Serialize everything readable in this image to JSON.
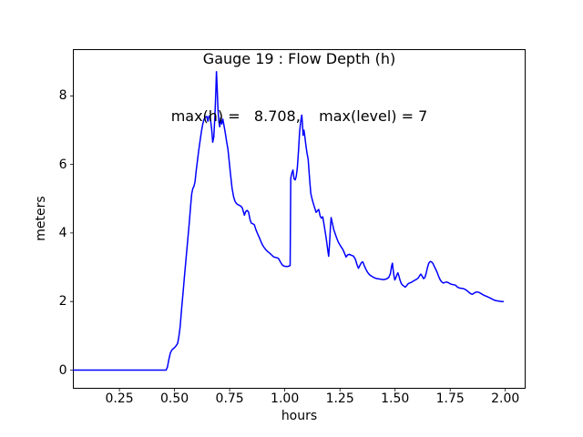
{
  "figure": {
    "title_line1": "Gauge 19 : Flow Depth (h)",
    "title_line2": "max(h) =   8.708,    max(level) = 7",
    "xlabel": "hours",
    "ylabel": "meters",
    "background_color": "#ffffff",
    "spine_color": "#000000",
    "max_h": 8.708,
    "max_level": 7
  },
  "chart_data": {
    "type": "line",
    "title": "Gauge 19 : Flow Depth (h)",
    "subtitle": "max(h) =   8.708,    max(level) = 7",
    "xlabel": "hours",
    "ylabel": "meters",
    "grid": false,
    "legend": null,
    "xlim": [
      0.041,
      2.09
    ],
    "ylim": [
      -0.53,
      9.35
    ],
    "xticks": [
      0.25,
      0.5,
      0.75,
      1.0,
      1.25,
      1.5,
      1.75,
      2.0
    ],
    "xtick_labels": [
      "0.25",
      "0.50",
      "0.75",
      "1.00",
      "1.25",
      "1.50",
      "1.75",
      "2.00"
    ],
    "yticks": [
      0,
      2,
      4,
      6,
      8
    ],
    "ytick_labels": [
      "0",
      "2",
      "4",
      "6",
      "8"
    ],
    "series": [
      {
        "name": "flow-depth-h",
        "color": "#0000ff",
        "line_width": 1.5,
        "points": [
          [
            0.041,
            0
          ],
          [
            0.1,
            0
          ],
          [
            0.2,
            0
          ],
          [
            0.3,
            0
          ],
          [
            0.4,
            0
          ],
          [
            0.44,
            0
          ],
          [
            0.462,
            0
          ],
          [
            0.468,
            0.1
          ],
          [
            0.474,
            0.3
          ],
          [
            0.481,
            0.5
          ],
          [
            0.488,
            0.59
          ],
          [
            0.495,
            0.63
          ],
          [
            0.502,
            0.67
          ],
          [
            0.509,
            0.73
          ],
          [
            0.514,
            0.78
          ],
          [
            0.519,
            0.95
          ],
          [
            0.525,
            1.25
          ],
          [
            0.532,
            1.8
          ],
          [
            0.539,
            2.3
          ],
          [
            0.546,
            2.8
          ],
          [
            0.553,
            3.3
          ],
          [
            0.56,
            3.8
          ],
          [
            0.567,
            4.3
          ],
          [
            0.573,
            4.8
          ],
          [
            0.578,
            5.15
          ],
          [
            0.583,
            5.3
          ],
          [
            0.588,
            5.36
          ],
          [
            0.593,
            5.5
          ],
          [
            0.598,
            5.8
          ],
          [
            0.604,
            6.12
          ],
          [
            0.61,
            6.42
          ],
          [
            0.616,
            6.7
          ],
          [
            0.622,
            6.96
          ],
          [
            0.628,
            7.18
          ],
          [
            0.634,
            7.32
          ],
          [
            0.64,
            7.38
          ],
          [
            0.646,
            7.4
          ],
          [
            0.651,
            7.26
          ],
          [
            0.656,
            7.41
          ],
          [
            0.662,
            7.36
          ],
          [
            0.668,
            7.05
          ],
          [
            0.673,
            6.65
          ],
          [
            0.678,
            6.8
          ],
          [
            0.683,
            7.4
          ],
          [
            0.687,
            8.1
          ],
          [
            0.69,
            8.708
          ],
          [
            0.693,
            8.3
          ],
          [
            0.697,
            7.6
          ],
          [
            0.701,
            7.25
          ],
          [
            0.705,
            7.1
          ],
          [
            0.709,
            7.35
          ],
          [
            0.714,
            7.18
          ],
          [
            0.719,
            7.32
          ],
          [
            0.724,
            7.15
          ],
          [
            0.73,
            6.92
          ],
          [
            0.736,
            6.68
          ],
          [
            0.742,
            6.45
          ],
          [
            0.748,
            6.1
          ],
          [
            0.754,
            5.7
          ],
          [
            0.761,
            5.3
          ],
          [
            0.768,
            5.05
          ],
          [
            0.774,
            4.93
          ],
          [
            0.781,
            4.86
          ],
          [
            0.79,
            4.82
          ],
          [
            0.799,
            4.79
          ],
          [
            0.807,
            4.74
          ],
          [
            0.813,
            4.6
          ],
          [
            0.817,
            4.52
          ],
          [
            0.822,
            4.62
          ],
          [
            0.829,
            4.66
          ],
          [
            0.836,
            4.61
          ],
          [
            0.842,
            4.4
          ],
          [
            0.848,
            4.29
          ],
          [
            0.855,
            4.27
          ],
          [
            0.862,
            4.24
          ],
          [
            0.869,
            4.1
          ],
          [
            0.876,
            3.99
          ],
          [
            0.884,
            3.87
          ],
          [
            0.892,
            3.75
          ],
          [
            0.9,
            3.64
          ],
          [
            0.908,
            3.56
          ],
          [
            0.916,
            3.5
          ],
          [
            0.924,
            3.45
          ],
          [
            0.932,
            3.41
          ],
          [
            0.94,
            3.36
          ],
          [
            0.948,
            3.31
          ],
          [
            0.956,
            3.29
          ],
          [
            0.964,
            3.28
          ],
          [
            0.971,
            3.26
          ],
          [
            0.978,
            3.18
          ],
          [
            0.985,
            3.1
          ],
          [
            0.992,
            3.05
          ],
          [
            1.0,
            3.03
          ],
          [
            1.008,
            3.02
          ],
          [
            1.016,
            3.03
          ],
          [
            1.024,
            3.05
          ],
          [
            1.027,
            5.6
          ],
          [
            1.032,
            5.75
          ],
          [
            1.037,
            5.84
          ],
          [
            1.042,
            5.58
          ],
          [
            1.047,
            5.55
          ],
          [
            1.052,
            5.65
          ],
          [
            1.057,
            5.9
          ],
          [
            1.062,
            6.4
          ],
          [
            1.067,
            6.95
          ],
          [
            1.072,
            7.25
          ],
          [
            1.077,
            7.44
          ],
          [
            1.08,
            7.2
          ],
          [
            1.083,
            6.85
          ],
          [
            1.087,
            7.0
          ],
          [
            1.091,
            6.8
          ],
          [
            1.095,
            6.6
          ],
          [
            1.1,
            6.35
          ],
          [
            1.106,
            6.15
          ],
          [
            1.112,
            5.6
          ],
          [
            1.118,
            5.15
          ],
          [
            1.124,
            4.98
          ],
          [
            1.13,
            4.85
          ],
          [
            1.136,
            4.72
          ],
          [
            1.142,
            4.6
          ],
          [
            1.148,
            4.65
          ],
          [
            1.154,
            4.69
          ],
          [
            1.16,
            4.5
          ],
          [
            1.166,
            4.43
          ],
          [
            1.172,
            4.47
          ],
          [
            1.178,
            4.25
          ],
          [
            1.184,
            4.0
          ],
          [
            1.19,
            3.75
          ],
          [
            1.195,
            3.5
          ],
          [
            1.199,
            3.32
          ],
          [
            1.203,
            3.7
          ],
          [
            1.207,
            4.2
          ],
          [
            1.21,
            4.45
          ],
          [
            1.216,
            4.28
          ],
          [
            1.222,
            4.1
          ],
          [
            1.229,
            3.97
          ],
          [
            1.236,
            3.84
          ],
          [
            1.243,
            3.73
          ],
          [
            1.25,
            3.65
          ],
          [
            1.257,
            3.58
          ],
          [
            1.264,
            3.51
          ],
          [
            1.271,
            3.41
          ],
          [
            1.278,
            3.3
          ],
          [
            1.285,
            3.36
          ],
          [
            1.293,
            3.38
          ],
          [
            1.302,
            3.35
          ],
          [
            1.311,
            3.33
          ],
          [
            1.32,
            3.24
          ],
          [
            1.328,
            3.07
          ],
          [
            1.334,
            2.97
          ],
          [
            1.341,
            3.06
          ],
          [
            1.348,
            3.14
          ],
          [
            1.354,
            3.16
          ],
          [
            1.361,
            3.04
          ],
          [
            1.368,
            2.94
          ],
          [
            1.375,
            2.86
          ],
          [
            1.383,
            2.79
          ],
          [
            1.391,
            2.75
          ],
          [
            1.399,
            2.72
          ],
          [
            1.408,
            2.69
          ],
          [
            1.417,
            2.67
          ],
          [
            1.427,
            2.66
          ],
          [
            1.437,
            2.65
          ],
          [
            1.447,
            2.64
          ],
          [
            1.456,
            2.65
          ],
          [
            1.464,
            2.67
          ],
          [
            1.472,
            2.71
          ],
          [
            1.479,
            2.82
          ],
          [
            1.485,
            3.05
          ],
          [
            1.488,
            3.12
          ],
          [
            1.491,
            2.95
          ],
          [
            1.495,
            2.75
          ],
          [
            1.499,
            2.63
          ],
          [
            1.504,
            2.7
          ],
          [
            1.509,
            2.79
          ],
          [
            1.513,
            2.84
          ],
          [
            1.518,
            2.74
          ],
          [
            1.523,
            2.62
          ],
          [
            1.528,
            2.53
          ],
          [
            1.534,
            2.48
          ],
          [
            1.54,
            2.45
          ],
          [
            1.546,
            2.42
          ],
          [
            1.552,
            2.46
          ],
          [
            1.558,
            2.51
          ],
          [
            1.565,
            2.54
          ],
          [
            1.573,
            2.56
          ],
          [
            1.581,
            2.59
          ],
          [
            1.589,
            2.62
          ],
          [
            1.597,
            2.65
          ],
          [
            1.605,
            2.69
          ],
          [
            1.612,
            2.76
          ],
          [
            1.617,
            2.8
          ],
          [
            1.623,
            2.74
          ],
          [
            1.629,
            2.67
          ],
          [
            1.635,
            2.7
          ],
          [
            1.641,
            2.82
          ],
          [
            1.647,
            3.0
          ],
          [
            1.653,
            3.12
          ],
          [
            1.659,
            3.17
          ],
          [
            1.665,
            3.16
          ],
          [
            1.671,
            3.12
          ],
          [
            1.677,
            3.04
          ],
          [
            1.684,
            2.95
          ],
          [
            1.691,
            2.85
          ],
          [
            1.698,
            2.73
          ],
          [
            1.705,
            2.63
          ],
          [
            1.712,
            2.57
          ],
          [
            1.719,
            2.54
          ],
          [
            1.726,
            2.56
          ],
          [
            1.734,
            2.57
          ],
          [
            1.742,
            2.55
          ],
          [
            1.75,
            2.52
          ],
          [
            1.758,
            2.5
          ],
          [
            1.766,
            2.49
          ],
          [
            1.774,
            2.48
          ],
          [
            1.782,
            2.43
          ],
          [
            1.79,
            2.4
          ],
          [
            1.799,
            2.39
          ],
          [
            1.808,
            2.38
          ],
          [
            1.817,
            2.36
          ],
          [
            1.826,
            2.32
          ],
          [
            1.835,
            2.27
          ],
          [
            1.843,
            2.23
          ],
          [
            1.85,
            2.21
          ],
          [
            1.857,
            2.24
          ],
          [
            1.864,
            2.27
          ],
          [
            1.872,
            2.28
          ],
          [
            1.88,
            2.27
          ],
          [
            1.888,
            2.24
          ],
          [
            1.896,
            2.21
          ],
          [
            1.904,
            2.18
          ],
          [
            1.912,
            2.16
          ],
          [
            1.92,
            2.14
          ],
          [
            1.929,
            2.11
          ],
          [
            1.938,
            2.08
          ],
          [
            1.947,
            2.05
          ],
          [
            1.956,
            2.03
          ],
          [
            1.965,
            2.02
          ],
          [
            1.974,
            2.01
          ],
          [
            1.983,
            2.0
          ],
          [
            1.991,
            2.0
          ]
        ]
      }
    ]
  }
}
